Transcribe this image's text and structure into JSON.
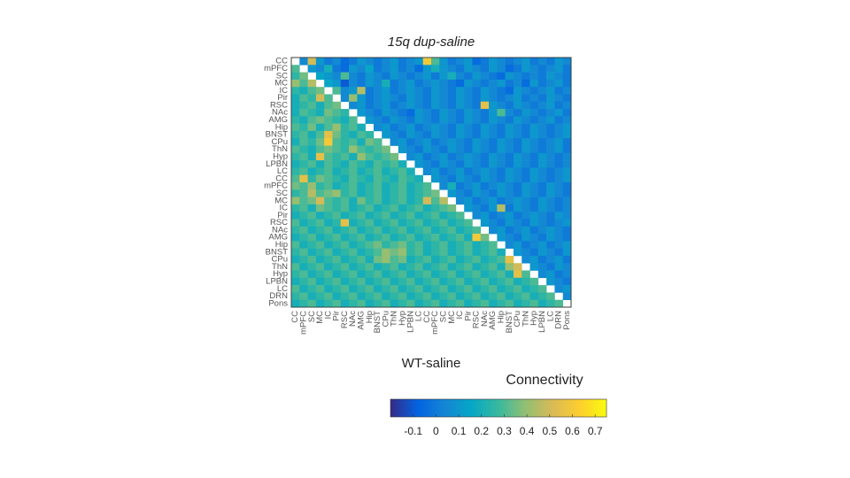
{
  "chart_data": {
    "type": "heatmap",
    "title": "15q dup-saline",
    "x_label": "WT-saline",
    "colorbar_label": "Connectivity",
    "row_labels": [
      "CC",
      "mPFC",
      "SC",
      "MC",
      "IC",
      "Pir",
      "RSC",
      "NAc",
      "AMG",
      "Hip",
      "BNST",
      "CPu",
      "ThN",
      "Hyp",
      "LPBN",
      "LC",
      "CC",
      "mPFC",
      "SC",
      "MC",
      "IC",
      "Pir",
      "RSC",
      "NAc",
      "AMG",
      "Hip",
      "BNST",
      "CPu",
      "ThN",
      "Hyp",
      "LPBN",
      "LC",
      "DRN",
      "Pons"
    ],
    "col_labels": [
      "CC",
      "mPFC",
      "SC",
      "MC",
      "IC",
      "Pir",
      "RSC",
      "NAc",
      "AMG",
      "Hip",
      "BNST",
      "CPu",
      "ThN",
      "Hyp",
      "LPBN",
      "LC",
      "CC",
      "mPFC",
      "SC",
      "MC",
      "IC",
      "Pir",
      "RSC",
      "NAc",
      "AMG",
      "Hip",
      "BNST",
      "CPu",
      "ThN",
      "Hyp",
      "LPBN",
      "LC",
      "DRN",
      "Pons"
    ],
    "clim": [
      -0.2,
      0.75
    ],
    "cticks": [
      -0.1,
      0,
      0.1,
      0.2,
      0.3,
      0.4,
      0.5,
      0.6,
      0.7
    ],
    "colormap": [
      "#352a87",
      "#0363e1",
      "#1485d4",
      "#06a7c6",
      "#38b99e",
      "#92bf73",
      "#d9ba56",
      "#fcce2e",
      "#f9fb0e"
    ],
    "values": [
      [
        null,
        0.05,
        0.5,
        0.1,
        0,
        0.05,
        -0.05,
        0,
        0.1,
        0.05,
        0,
        0.05,
        0.1,
        0,
        0.05,
        0.1,
        0.6,
        0.3,
        0.1,
        0,
        0.05,
        0.1,
        -0.05,
        0,
        0.1,
        0.05,
        0,
        0.05,
        0.1,
        0,
        0.05,
        0,
        0.1,
        0.05
      ],
      [
        0.3,
        null,
        0.1,
        0.05,
        0.2,
        0,
        -0.05,
        0.1,
        0.05,
        0.15,
        0,
        0.05,
        0.1,
        0,
        0.05,
        -0.05,
        0.1,
        0.2,
        0.1,
        0.05,
        0,
        0.1,
        0.05,
        0,
        0.1,
        0.05,
        -0.05,
        0,
        0.1,
        0.05,
        0,
        0.05,
        0.1,
        0
      ],
      [
        0.25,
        0.35,
        null,
        0.15,
        0.1,
        0.05,
        0.3,
        0.05,
        0,
        0.1,
        0.05,
        0,
        0.1,
        0.05,
        0,
        0.05,
        0.1,
        0,
        0.1,
        0.2,
        0.05,
        0,
        0.1,
        0.05,
        0,
        -0.05,
        0.1,
        0.05,
        0,
        0.05,
        0,
        0.1,
        0.05,
        0
      ],
      [
        0.4,
        0.3,
        0.45,
        null,
        0.15,
        0.1,
        -0.1,
        0.05,
        0,
        0.1,
        0.05,
        0.2,
        0,
        0.05,
        0.1,
        0,
        0.05,
        0.1,
        0.05,
        0,
        -0.05,
        0.1,
        0.05,
        0,
        0.05,
        0.1,
        0,
        0.05,
        -0.05,
        0.1,
        0,
        0.05,
        0.1,
        0
      ],
      [
        0.25,
        0.2,
        0.3,
        0.35,
        null,
        0.3,
        0.05,
        0.1,
        0.45,
        0,
        0.05,
        0.1,
        0,
        0.05,
        0.1,
        0.05,
        0,
        0.1,
        0.05,
        0,
        0.1,
        0.05,
        0,
        0.1,
        0.05,
        0,
        -0.05,
        0.1,
        0.05,
        0,
        0.05,
        0.1,
        0,
        0.05
      ],
      [
        0.2,
        0.3,
        0.25,
        0.5,
        0.3,
        null,
        0.05,
        0.4,
        0.1,
        0,
        0.05,
        0.1,
        0.05,
        0,
        0.1,
        0.05,
        0,
        0.1,
        0.05,
        0,
        0.1,
        0.05,
        0,
        0.1,
        0.05,
        0,
        0.05,
        0.1,
        0,
        0.05,
        0,
        0.1,
        0.05,
        0
      ],
      [
        0.2,
        0.25,
        0.3,
        0.2,
        0.3,
        0.35,
        null,
        0.05,
        0.1,
        0,
        0.05,
        0.1,
        0,
        0.05,
        0.1,
        0.05,
        0,
        0.1,
        0.05,
        0,
        0.1,
        0.05,
        0,
        0.55,
        0.1,
        0.05,
        0,
        0.1,
        0.05,
        0,
        0.05,
        0.1,
        0,
        0.05
      ],
      [
        0.2,
        0.3,
        0.25,
        0.2,
        0.35,
        0.3,
        0.25,
        null,
        0.1,
        0.05,
        0,
        0.1,
        0.05,
        0,
        -0.05,
        0.1,
        0.05,
        0,
        0.1,
        0.05,
        0,
        0.1,
        0.05,
        0,
        0.1,
        0.3,
        0.05,
        0,
        0.1,
        0.05,
        0,
        0.05,
        0.1,
        0
      ],
      [
        0.25,
        0.2,
        0.3,
        0.35,
        0.3,
        0.25,
        0.2,
        0.3,
        null,
        0.1,
        0.05,
        0,
        0.1,
        0.05,
        0,
        0.1,
        0.05,
        0,
        0.1,
        0.05,
        0,
        0.1,
        0.05,
        0,
        0.1,
        0.05,
        0,
        0.1,
        0.05,
        0,
        0.05,
        0.1,
        0,
        0.05
      ],
      [
        0.3,
        0.25,
        0.35,
        0.2,
        0.3,
        0.4,
        0.25,
        0.3,
        0.2,
        null,
        0.05,
        0.1,
        0,
        0.05,
        0.1,
        0,
        0.05,
        0.1,
        0.05,
        0,
        0.1,
        0.05,
        0,
        0.1,
        0.05,
        0,
        0.1,
        0.05,
        0,
        0.1,
        0.05,
        0,
        0.05,
        0.1
      ],
      [
        0.25,
        0.3,
        0.2,
        0.3,
        0.55,
        0.35,
        0.25,
        0.2,
        0.3,
        0.25,
        null,
        0.1,
        0.05,
        0,
        0.1,
        0.05,
        0,
        0.1,
        0.05,
        0,
        0.1,
        0.05,
        0,
        0.1,
        0.05,
        0,
        0.1,
        0.05,
        0,
        0.1,
        0.05,
        0,
        0.05,
        0.1
      ],
      [
        0.2,
        0.3,
        0.25,
        0.35,
        0.6,
        0.3,
        0.25,
        0.3,
        0.2,
        0.35,
        0.3,
        null,
        0.05,
        0.1,
        0,
        0.05,
        0.1,
        0,
        0.05,
        0.1,
        0.05,
        0,
        0.1,
        0.05,
        0,
        0.1,
        0.05,
        0,
        0.1,
        0.05,
        0,
        0.05,
        0.1,
        0
      ],
      [
        0.3,
        0.25,
        0.2,
        0.3,
        0.35,
        0.3,
        0.25,
        0.4,
        0.3,
        0.25,
        0.3,
        0.35,
        null,
        0.1,
        0.05,
        0,
        0.1,
        0.05,
        0,
        0.1,
        0.05,
        0,
        0.1,
        0.05,
        0,
        0.1,
        0.05,
        0,
        0.1,
        0.05,
        0,
        0.05,
        0.1,
        0
      ],
      [
        0.25,
        0.3,
        0.2,
        0.55,
        0.3,
        0.25,
        0.3,
        0.2,
        0.4,
        0.3,
        0.25,
        0.3,
        0.35,
        null,
        0.05,
        0.1,
        0,
        0.05,
        0.1,
        0,
        0.05,
        0.1,
        0.05,
        0,
        0.1,
        0.05,
        0,
        0.1,
        0.05,
        0,
        0.1,
        0.05,
        0,
        0.05
      ],
      [
        0.2,
        0.25,
        0.3,
        0.2,
        0.3,
        0.25,
        0.2,
        0.3,
        0.25,
        0.2,
        0.3,
        0.25,
        0.3,
        0.2,
        null,
        0.1,
        0.05,
        0,
        0.1,
        0.05,
        0,
        0.1,
        0.05,
        0,
        0.1,
        0.05,
        0,
        0.1,
        0.05,
        0,
        0.1,
        0.05,
        0,
        0.05
      ],
      [
        0.25,
        0.3,
        0.2,
        0.25,
        0.3,
        0.2,
        0.25,
        0.3,
        0.2,
        0.25,
        0.3,
        0.2,
        0.25,
        0.3,
        0.2,
        null,
        0.05,
        0.1,
        0,
        0.05,
        0.1,
        0,
        0.05,
        0.1,
        0.05,
        0,
        0.1,
        0.05,
        0,
        0.1,
        0.05,
        0,
        0.05,
        0.1
      ],
      [
        0.3,
        0.55,
        0.25,
        0.35,
        0.3,
        0.25,
        0.2,
        0.3,
        0.25,
        0.2,
        0.3,
        0.25,
        0.2,
        0.3,
        0.25,
        0.2,
        null,
        0.1,
        0.05,
        0,
        0.1,
        0.05,
        0,
        0.1,
        0.05,
        0,
        0.1,
        0.05,
        0,
        0.1,
        0.05,
        0,
        0.05,
        0.1
      ],
      [
        0.35,
        0.3,
        0.4,
        0.25,
        0.3,
        0.2,
        0.25,
        0.3,
        0.2,
        0.25,
        0.3,
        0.2,
        0.25,
        0.3,
        0.2,
        0.25,
        0.3,
        null,
        0.05,
        0.2,
        0,
        0.05,
        0.1,
        0,
        0.05,
        0.1,
        0.05,
        0,
        0.1,
        0.05,
        0,
        0.1,
        0.05,
        0
      ],
      [
        0.25,
        0.3,
        0.45,
        0.3,
        0.35,
        0.4,
        0.25,
        0.3,
        0.2,
        0.25,
        0.3,
        0.2,
        0.25,
        0.3,
        0.2,
        0.25,
        0.3,
        0.35,
        null,
        0.1,
        0.05,
        0,
        0.1,
        0.05,
        0,
        0.1,
        0.05,
        0,
        0.1,
        0.05,
        0,
        0.1,
        0.05,
        0
      ],
      [
        0.4,
        0.3,
        0.35,
        0.5,
        0.3,
        0.25,
        0.3,
        0.2,
        0.35,
        0.25,
        0.3,
        0.2,
        0.25,
        0.3,
        0.2,
        0.25,
        0.5,
        0.3,
        0.45,
        null,
        0.05,
        0.1,
        0,
        0.05,
        0.1,
        0,
        0.05,
        0.1,
        0.05,
        0,
        0.1,
        0.05,
        0,
        0.05
      ],
      [
        0.25,
        0.3,
        0.2,
        0.35,
        0.3,
        0.25,
        0.3,
        0.2,
        0.25,
        0.3,
        0.2,
        0.25,
        0.3,
        0.2,
        0.25,
        0.3,
        0.2,
        0.25,
        0.3,
        0.35,
        null,
        0.1,
        0.05,
        0,
        0.1,
        0.45,
        0,
        0.1,
        0.05,
        0,
        0.1,
        0.05,
        0,
        0.05
      ],
      [
        0.2,
        0.25,
        0.3,
        0.2,
        0.25,
        0.3,
        0.2,
        0.25,
        0.3,
        0.2,
        0.25,
        0.3,
        0.2,
        0.25,
        0.3,
        0.2,
        0.25,
        0.3,
        0.2,
        0.25,
        0.3,
        null,
        0.05,
        0.1,
        0,
        0.05,
        0.1,
        0,
        0.05,
        0.1,
        0.05,
        0,
        0.1,
        0.05
      ],
      [
        0.3,
        0.2,
        0.25,
        0.3,
        0.2,
        0.25,
        0.55,
        0.2,
        0.25,
        0.3,
        0.2,
        0.25,
        0.3,
        0.2,
        0.25,
        0.3,
        0.2,
        0.25,
        0.3,
        0.2,
        0.25,
        0.3,
        null,
        0.1,
        0.05,
        0,
        0.1,
        0.05,
        0,
        0.1,
        0.05,
        0,
        0.05,
        0.1
      ],
      [
        0.25,
        0.3,
        0.2,
        0.25,
        0.3,
        0.2,
        0.25,
        0.3,
        0.2,
        0.25,
        0.3,
        0.2,
        0.25,
        0.3,
        0.2,
        0.25,
        0.3,
        0.2,
        0.25,
        0.3,
        0.2,
        0.25,
        0.3,
        null,
        0.05,
        0.1,
        0,
        0.05,
        0.1,
        0,
        0.05,
        0.1,
        0.05,
        0
      ],
      [
        0.2,
        0.25,
        0.3,
        0.2,
        0.25,
        0.3,
        0.2,
        0.25,
        0.3,
        0.2,
        0.25,
        0.3,
        0.2,
        0.25,
        0.3,
        0.2,
        0.25,
        0.3,
        0.2,
        0.25,
        0.3,
        0.2,
        0.6,
        0.35,
        null,
        0.1,
        0.05,
        0,
        0.1,
        0.05,
        0,
        0.1,
        0.05,
        0
      ],
      [
        0.3,
        0.2,
        0.25,
        0.3,
        0.2,
        0.25,
        0.3,
        0.2,
        0.25,
        0.3,
        0.35,
        0.25,
        0.3,
        0.35,
        0.25,
        0.3,
        0.2,
        0.25,
        0.3,
        0.2,
        0.25,
        0.3,
        0.2,
        0.25,
        0.3,
        null,
        0.05,
        0.1,
        0,
        0.05,
        0.1,
        0,
        0.05,
        0.1
      ],
      [
        0.25,
        0.3,
        0.2,
        0.25,
        0.3,
        0.2,
        0.25,
        0.3,
        0.2,
        0.25,
        0.3,
        0.4,
        0.35,
        0.4,
        0.25,
        0.3,
        0.2,
        0.25,
        0.3,
        0.2,
        0.25,
        0.3,
        0.2,
        0.25,
        0.3,
        0.2,
        null,
        0.1,
        0.05,
        0,
        0.1,
        0.05,
        0,
        0.1
      ],
      [
        0.2,
        0.25,
        0.3,
        0.2,
        0.25,
        0.3,
        0.2,
        0.25,
        0.3,
        0.2,
        0.35,
        0.4,
        0.3,
        0.35,
        0.2,
        0.25,
        0.3,
        0.2,
        0.25,
        0.3,
        0.2,
        0.25,
        0.3,
        0.2,
        0.25,
        0.3,
        0.55,
        null,
        0.05,
        0.1,
        0,
        0.05,
        0.1,
        0
      ],
      [
        0.3,
        0.2,
        0.25,
        0.3,
        0.2,
        0.25,
        0.3,
        0.2,
        0.25,
        0.3,
        0.2,
        0.25,
        0.3,
        0.2,
        0.25,
        0.3,
        0.2,
        0.25,
        0.3,
        0.2,
        0.25,
        0.3,
        0.2,
        0.25,
        0.3,
        0.2,
        0.4,
        0.5,
        null,
        0.1,
        0.05,
        0,
        0.1,
        0.05
      ],
      [
        0.25,
        0.3,
        0.2,
        0.25,
        0.3,
        0.2,
        0.25,
        0.3,
        0.2,
        0.25,
        0.3,
        0.2,
        0.25,
        0.3,
        0.2,
        0.25,
        0.3,
        0.2,
        0.25,
        0.3,
        0.2,
        0.25,
        0.3,
        0.2,
        0.25,
        0.3,
        0.2,
        0.55,
        0.3,
        null,
        0.05,
        0.1,
        0,
        0.05
      ],
      [
        0.2,
        0.25,
        0.3,
        0.2,
        0.25,
        0.3,
        0.2,
        0.25,
        0.3,
        0.2,
        0.25,
        0.3,
        0.2,
        0.25,
        0.3,
        0.2,
        0.25,
        0.3,
        0.2,
        0.25,
        0.3,
        0.2,
        0.25,
        0.3,
        0.2,
        0.25,
        0.3,
        0.2,
        0.25,
        0.3,
        null,
        0.1,
        0.05,
        0
      ],
      [
        0.3,
        0.2,
        0.25,
        0.3,
        0.2,
        0.25,
        0.3,
        0.2,
        0.25,
        0.3,
        0.2,
        0.25,
        0.3,
        0.2,
        0.25,
        0.3,
        0.2,
        0.25,
        0.3,
        0.2,
        0.25,
        0.3,
        0.2,
        0.25,
        0.3,
        0.2,
        0.25,
        0.3,
        0.2,
        0.25,
        0.3,
        null,
        0.05,
        0.1
      ],
      [
        0.25,
        0.3,
        0.2,
        0.25,
        0.3,
        0.2,
        0.25,
        0.3,
        0.2,
        0.25,
        0.3,
        0.2,
        0.25,
        0.3,
        0.2,
        0.25,
        0.3,
        0.2,
        0.25,
        0.3,
        0.2,
        0.25,
        0.3,
        0.2,
        0.25,
        0.3,
        0.2,
        0.25,
        0.3,
        0.2,
        0.25,
        0.3,
        null,
        0.05
      ],
      [
        0.2,
        0.25,
        0.3,
        0.2,
        0.25,
        0.3,
        0.2,
        0.25,
        0.3,
        0.2,
        0.25,
        0.3,
        0.2,
        0.25,
        0.3,
        0.2,
        0.25,
        0.3,
        0.2,
        0.25,
        0.3,
        0.2,
        0.25,
        0.3,
        0.2,
        0.25,
        0.3,
        0.2,
        0.25,
        0.3,
        0.2,
        0.25,
        0.3,
        null
      ]
    ]
  }
}
